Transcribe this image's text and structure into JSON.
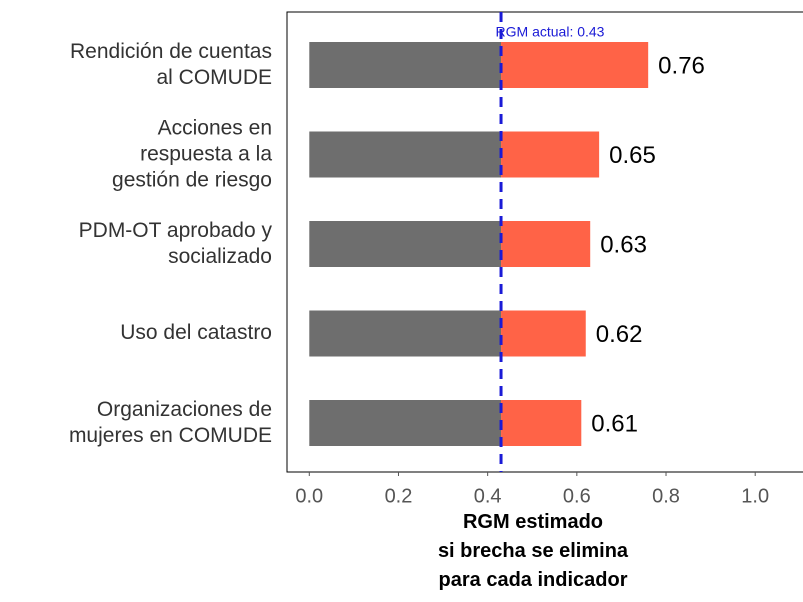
{
  "chart_data": {
    "type": "bar",
    "orientation": "horizontal",
    "categories": [
      "Rendición de cuentas\nal COMUDE",
      "Acciones en\nrespuesta a la\ngestión de riesgo",
      "PDM-OT aprobado y\nsocializado",
      "Uso del catastro",
      "Organizaciones de\nmujeres en COMUDE"
    ],
    "values": [
      0.76,
      0.65,
      0.63,
      0.62,
      0.61
    ],
    "color": "#ff6347",
    "reference": 0.43,
    "reference_color": "#6e6e6e",
    "reference_line_color": "#1a1ad6",
    "annotation": "RGM actual: 0.43",
    "x_label": "RGM estimado\nsi brecha se elimina\npara cada indicador",
    "xlim": [
      -0.05,
      1.17
    ],
    "xticks": [
      {
        "value": 0,
        "label": "0.0"
      },
      0.2,
      0.4,
      0.6,
      0.8,
      {
        "value": 1,
        "label": "1.0"
      }
    ]
  }
}
